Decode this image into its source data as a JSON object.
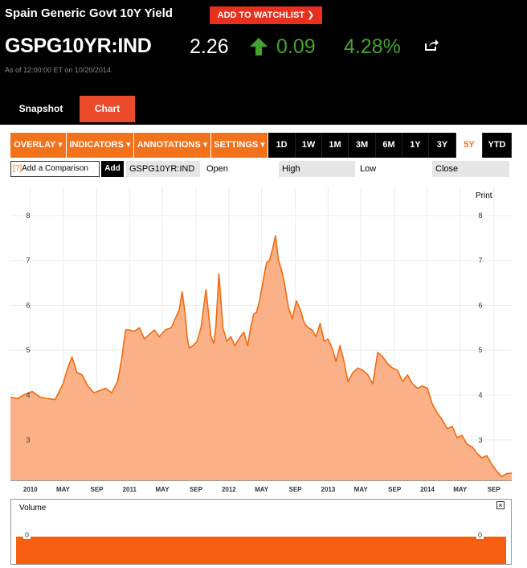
{
  "header": {
    "title": "Spain Generic Govt 10Y Yield",
    "watchlist_label": "ADD TO WATCHLIST",
    "ticker": "GSPG10YR:IND",
    "price": "2.26",
    "change": "0.09",
    "change_pct": "4.28%",
    "as_of": "As of 12:00:00 ET on 10/20/2014.",
    "share_icon": "share-icon",
    "up_icon": "arrow-up-icon",
    "up_color": "#43a32f"
  },
  "tabs": [
    {
      "label": "Snapshot"
    },
    {
      "label": "Chart",
      "active": true
    }
  ],
  "toolbar": {
    "menus": [
      {
        "label": "OVERLAY ▾"
      },
      {
        "label": "INDICATORS ▾"
      },
      {
        "label": "ANNOTATIONS ▾"
      },
      {
        "label": "SETTINGS ▾"
      }
    ],
    "ranges": [
      {
        "label": "1D"
      },
      {
        "label": "1W"
      },
      {
        "label": "1M"
      },
      {
        "label": "3M"
      },
      {
        "label": "6M"
      },
      {
        "label": "1Y"
      },
      {
        "label": "3Y"
      },
      {
        "label": "5Y",
        "active": true
      },
      {
        "label": "YTD"
      }
    ],
    "accent": "#f2721b"
  },
  "compare": {
    "q_mark": "[?]",
    "placeholder": "Add a Comparison",
    "add_label": "Add",
    "symbol": "GSPG10YR:IND",
    "open_label": "Open",
    "high_label": "High",
    "low_label": "Low",
    "close_label": "Close"
  },
  "print_label": "Print",
  "volume": {
    "label": "Volume",
    "close_symbol": "×",
    "zero_left": "0",
    "zero_right": "0"
  },
  "chart_data": {
    "type": "area",
    "title": "",
    "xlabel": "",
    "ylabel": "",
    "ylim": [
      2.1,
      8.5
    ],
    "yticks": [
      3,
      4,
      5,
      6,
      7,
      8
    ],
    "xticks": [
      {
        "x": 2010.0,
        "label": "2010"
      },
      {
        "x": 2010.33,
        "label": "MAY"
      },
      {
        "x": 2010.67,
        "label": "SEP"
      },
      {
        "x": 2011.0,
        "label": "2011"
      },
      {
        "x": 2011.33,
        "label": "MAY"
      },
      {
        "x": 2011.67,
        "label": "SEP"
      },
      {
        "x": 2012.0,
        "label": "2012"
      },
      {
        "x": 2012.33,
        "label": "MAY"
      },
      {
        "x": 2012.67,
        "label": "SEP"
      },
      {
        "x": 2013.0,
        "label": "2013"
      },
      {
        "x": 2013.33,
        "label": "MAY"
      },
      {
        "x": 2013.67,
        "label": "SEP"
      },
      {
        "x": 2014.0,
        "label": "2014"
      },
      {
        "x": 2014.33,
        "label": "MAY"
      },
      {
        "x": 2014.67,
        "label": "SEP"
      }
    ],
    "xlim": [
      2009.8,
      2014.85
    ],
    "grid": true,
    "line_color": "#f26a0f",
    "fill_color": "#fbb187",
    "x": [
      2009.8,
      2009.87,
      2009.95,
      2010.02,
      2010.1,
      2010.17,
      2010.25,
      2010.33,
      2010.37,
      2010.42,
      2010.47,
      2010.52,
      2010.58,
      2010.64,
      2010.7,
      2010.76,
      2010.82,
      2010.88,
      2010.92,
      2010.96,
      2011.0,
      2011.05,
      2011.1,
      2011.15,
      2011.2,
      2011.25,
      2011.3,
      2011.36,
      2011.42,
      2011.46,
      2011.5,
      2011.53,
      2011.56,
      2011.58,
      2011.6,
      2011.64,
      2011.68,
      2011.72,
      2011.77,
      2011.82,
      2011.85,
      2011.87,
      2011.9,
      2011.94,
      2011.98,
      2012.02,
      2012.06,
      2012.1,
      2012.15,
      2012.19,
      2012.22,
      2012.25,
      2012.28,
      2012.31,
      2012.35,
      2012.38,
      2012.41,
      2012.44,
      2012.47,
      2012.5,
      2012.53,
      2012.56,
      2012.6,
      2012.64,
      2012.68,
      2012.72,
      2012.76,
      2012.8,
      2012.84,
      2012.88,
      2012.92,
      2012.96,
      2013.0,
      2013.04,
      2013.08,
      2013.12,
      2013.16,
      2013.2,
      2013.25,
      2013.3,
      2013.35,
      2013.4,
      2013.45,
      2013.5,
      2013.55,
      2013.6,
      2013.65,
      2013.7,
      2013.75,
      2013.8,
      2013.85,
      2013.9,
      2013.95,
      2014.0,
      2014.05,
      2014.1,
      2014.15,
      2014.2,
      2014.25,
      2014.3,
      2014.35,
      2014.4,
      2014.45,
      2014.5,
      2014.55,
      2014.6,
      2014.65,
      2014.7,
      2014.75,
      2014.8,
      2014.85
    ],
    "y": [
      3.95,
      3.92,
      4.02,
      4.08,
      3.95,
      3.92,
      3.9,
      4.25,
      4.55,
      4.85,
      4.5,
      4.45,
      4.2,
      4.05,
      4.1,
      4.15,
      4.05,
      4.3,
      4.8,
      5.45,
      5.45,
      5.42,
      5.5,
      5.25,
      5.35,
      5.45,
      5.3,
      5.45,
      5.5,
      5.7,
      5.9,
      6.3,
      5.8,
      5.3,
      5.05,
      5.1,
      5.2,
      5.5,
      6.35,
      5.3,
      5.15,
      5.55,
      6.7,
      5.5,
      5.2,
      5.3,
      5.1,
      5.25,
      5.4,
      5.1,
      5.5,
      5.8,
      5.85,
      6.1,
      6.6,
      6.95,
      7.0,
      7.25,
      7.55,
      7.0,
      6.8,
      6.5,
      5.95,
      5.7,
      6.1,
      5.9,
      5.6,
      5.5,
      5.45,
      5.3,
      5.6,
      5.2,
      5.25,
      5.05,
      4.75,
      5.1,
      4.75,
      4.3,
      4.5,
      4.6,
      4.55,
      4.45,
      4.25,
      4.95,
      4.85,
      4.7,
      4.6,
      4.55,
      4.3,
      4.45,
      4.25,
      4.15,
      4.2,
      4.15,
      3.8,
      3.6,
      3.45,
      3.25,
      3.3,
      3.05,
      3.1,
      2.9,
      2.85,
      2.7,
      2.6,
      2.65,
      2.45,
      2.3,
      2.18,
      2.25,
      2.26
    ]
  }
}
